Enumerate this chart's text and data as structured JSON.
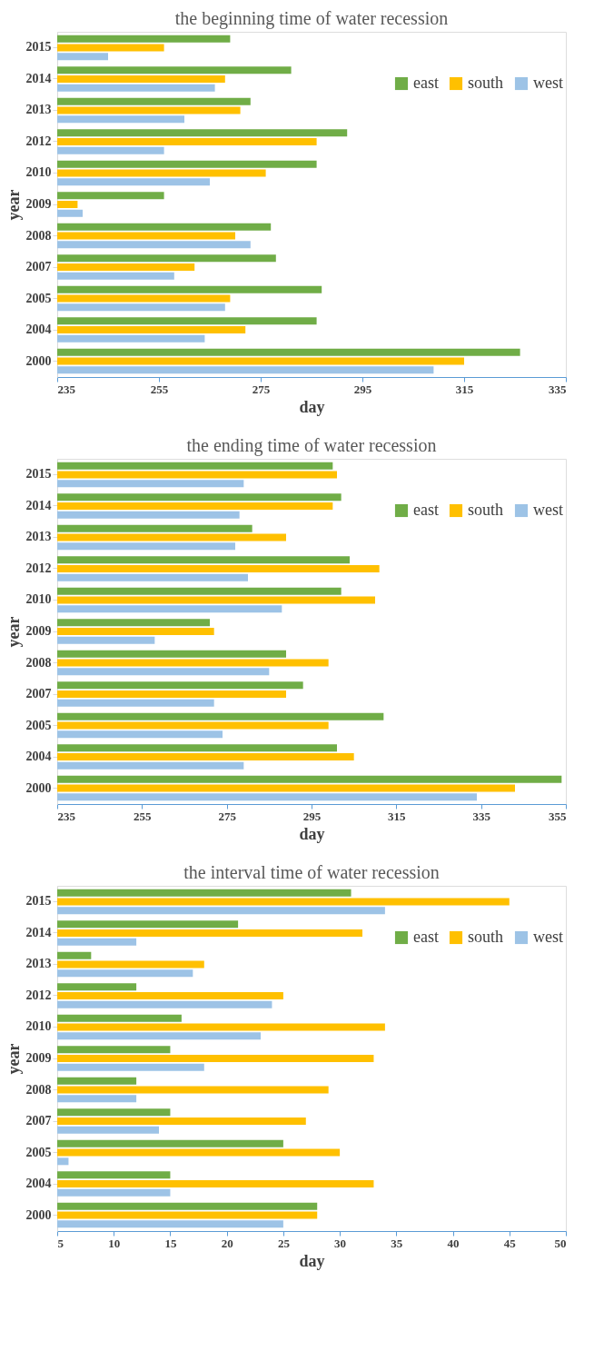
{
  "chart_data": [
    {
      "type": "bar",
      "orientation": "horizontal",
      "title": "the beginning time of water recession",
      "xlabel": "day",
      "ylabel": "year",
      "legend": "top right",
      "grid": false,
      "categories": [
        "2015",
        "2014",
        "2013",
        "2012",
        "2010",
        "2009",
        "2008",
        "2007",
        "2005",
        "2004",
        "2000"
      ],
      "series": [
        {
          "name": "east",
          "color": "#70ad47",
          "values": [
            269,
            281,
            273,
            292,
            286,
            256,
            277,
            278,
            287,
            286,
            326
          ]
        },
        {
          "name": "south",
          "color": "#ffc000",
          "values": [
            256,
            268,
            271,
            286,
            276,
            239,
            270,
            262,
            269,
            272,
            315
          ]
        },
        {
          "name": "west",
          "color": "#9dc3e6",
          "values": [
            245,
            266,
            260,
            256,
            265,
            240,
            273,
            258,
            268,
            264,
            309
          ]
        }
      ],
      "xlim": [
        235,
        335
      ],
      "xticks": [
        235,
        255,
        275,
        295,
        315,
        335
      ]
    },
    {
      "type": "bar",
      "orientation": "horizontal",
      "title": "the ending time of water recession",
      "xlabel": "day",
      "ylabel": "year",
      "legend": "top right",
      "grid": false,
      "categories": [
        "2015",
        "2014",
        "2013",
        "2012",
        "2010",
        "2009",
        "2008",
        "2007",
        "2005",
        "2004",
        "2000"
      ],
      "series": [
        {
          "name": "east",
          "color": "#70ad47",
          "values": [
            300,
            302,
            281,
            304,
            302,
            271,
            289,
            293,
            312,
            301,
            354
          ]
        },
        {
          "name": "south",
          "color": "#ffc000",
          "values": [
            301,
            300,
            289,
            311,
            310,
            272,
            299,
            289,
            299,
            305,
            343
          ]
        },
        {
          "name": "west",
          "color": "#9dc3e6",
          "values": [
            279,
            278,
            277,
            280,
            288,
            258,
            285,
            272,
            274,
            279,
            334
          ]
        }
      ],
      "xlim": [
        235,
        355
      ],
      "xticks": [
        235,
        255,
        275,
        295,
        315,
        335,
        355
      ]
    },
    {
      "type": "bar",
      "orientation": "horizontal",
      "title": "the interval time of water recession",
      "xlabel": "day",
      "ylabel": "year",
      "legend": "top right",
      "grid": false,
      "categories": [
        "2015",
        "2014",
        "2013",
        "2012",
        "2010",
        "2009",
        "2008",
        "2007",
        "2005",
        "2004",
        "2000"
      ],
      "series": [
        {
          "name": "east",
          "color": "#70ad47",
          "values": [
            31,
            21,
            8,
            12,
            16,
            15,
            12,
            15,
            25,
            15,
            28
          ]
        },
        {
          "name": "south",
          "color": "#ffc000",
          "values": [
            45,
            32,
            18,
            25,
            34,
            33,
            29,
            27,
            30,
            33,
            28
          ]
        },
        {
          "name": "west",
          "color": "#9dc3e6",
          "values": [
            34,
            12,
            17,
            24,
            23,
            18,
            12,
            14,
            6,
            15,
            25
          ]
        }
      ],
      "xlim": [
        5,
        50
      ],
      "xticks": [
        5,
        10,
        15,
        20,
        25,
        30,
        35,
        40,
        45,
        50
      ]
    }
  ]
}
